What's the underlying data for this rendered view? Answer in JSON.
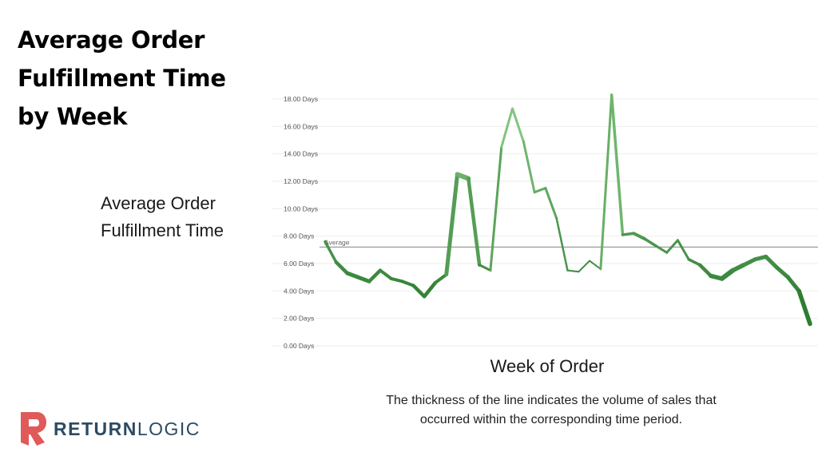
{
  "title": "Average Order Fulfillment Time by Week",
  "caption": "The thickness of the line indicates the volume of sales that occurred within the corresponding time period.",
  "brand": {
    "part1": "RETURN",
    "part2": "LOGIC",
    "color_primary": "#e05a5a",
    "color_text": "#2c4a63"
  },
  "colors": {
    "line_dark": "#2e7d32",
    "line_light": "#8fd08a",
    "reference_line": "#9a9a9a",
    "grid": "#eeeeee"
  },
  "chart_data": {
    "type": "line",
    "title": "",
    "xlabel": "Week of Order",
    "ylabel": "Average Order Fulfillment Time",
    "ylim": [
      0,
      18
    ],
    "yticks": [
      "0.00 Days",
      "2.00 Days",
      "4.00 Days",
      "6.00 Days",
      "8.00 Days",
      "10.00 Days",
      "12.00 Days",
      "14.00 Days",
      "16.00 Days",
      "18.00 Days"
    ],
    "grid": true,
    "legend": "none",
    "series": [
      {
        "values": [
          7.6,
          6.1,
          5.3,
          5.0,
          4.7,
          5.5,
          4.9,
          4.7,
          4.4,
          3.6,
          4.6,
          5.2,
          12.5,
          12.2,
          5.9,
          5.5,
          14.5,
          17.3,
          14.9,
          11.2,
          11.5,
          9.3,
          5.5,
          5.4,
          6.2,
          5.6,
          18.3,
          8.1,
          8.2,
          7.8,
          7.3,
          6.8,
          7.7,
          6.3,
          5.9,
          5.1,
          4.9,
          5.5,
          5.9,
          6.3,
          6.5,
          5.7,
          5.0,
          4.0,
          1.6
        ],
        "volume": [
          3,
          4,
          5,
          5,
          5,
          4,
          4,
          4,
          4,
          5,
          4,
          4,
          6,
          6,
          3,
          3,
          3,
          3,
          3,
          3,
          3,
          3,
          2,
          2,
          2,
          2,
          4,
          3,
          4,
          4,
          3,
          3,
          3,
          3,
          4,
          5,
          6,
          6,
          5,
          5,
          5,
          5,
          5,
          5,
          6
        ]
      }
    ],
    "reference_line": {
      "label": "Average",
      "value": 7.2
    }
  }
}
